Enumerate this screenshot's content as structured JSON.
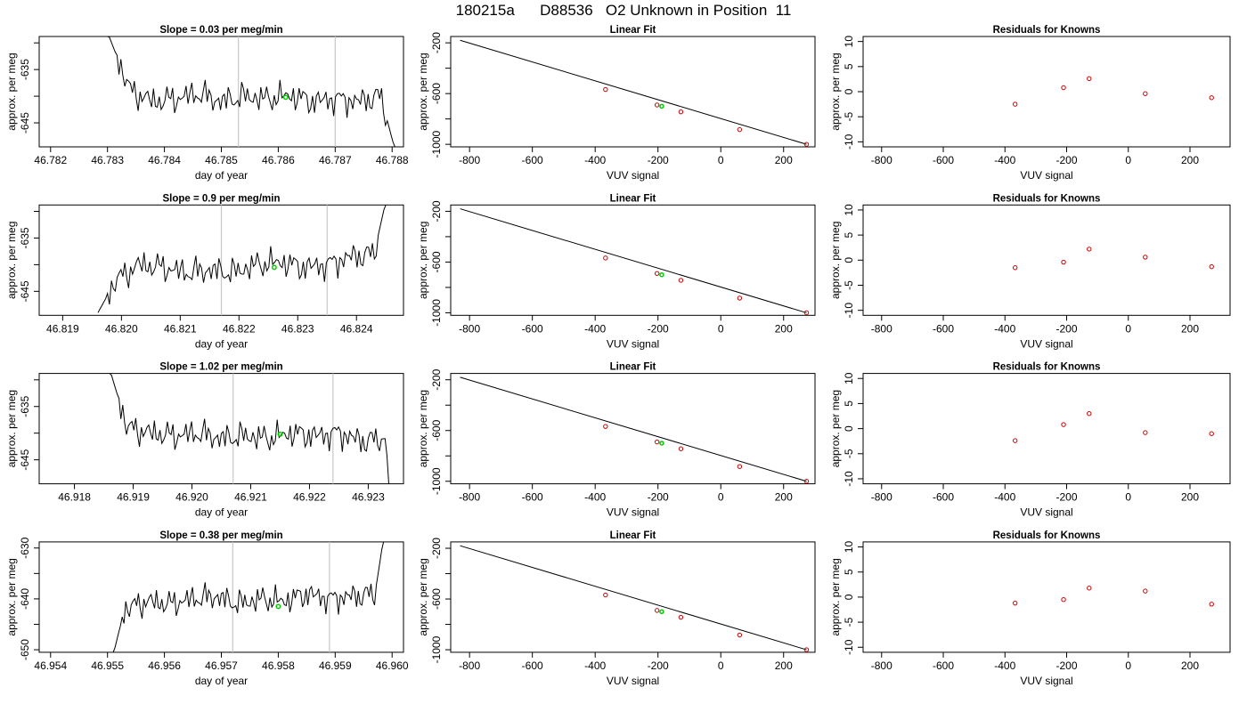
{
  "title": "180215a      D88536   O2 Unknown in Position  11",
  "colors": {
    "trace": "#000000",
    "highlight": "#00cc00",
    "known_points": "#cc0000",
    "cycle_markers": "#c8c8c8",
    "fit_line": "#000000"
  },
  "chart_data": [
    {
      "type": "line",
      "row": 1,
      "title": "Slope =  0.03  per meg/min",
      "xlabel": "day of year",
      "ylabel": "approx. per meg",
      "xlim": [
        46.7818,
        46.7882
      ],
      "ylim": [
        -649.5,
        -628.8
      ],
      "xticks": [
        "46.782",
        "46.783",
        "46.784",
        "46.785",
        "46.786",
        "46.787",
        "46.788"
      ],
      "yticks": [
        "-635",
        "-645"
      ],
      "markers_x": [
        46.7853,
        46.787
      ],
      "trace_x": [
        46.783,
        46.7834,
        46.7838,
        46.7842,
        46.7846,
        46.785,
        46.7854,
        46.7858,
        46.7862,
        46.7866,
        46.787,
        46.7874,
        46.7878,
        46.78805
      ],
      "trace_y": [
        -628,
        -639,
        -641,
        -640.5,
        -639.5,
        -641,
        -640,
        -640.5,
        -639.8,
        -641,
        -640.5,
        -641,
        -640,
        -650
      ],
      "highlight": {
        "x": 46.78613,
        "y": -640.2
      }
    },
    {
      "type": "scatter",
      "row": 1,
      "title": "Linear Fit",
      "xlabel": "VUV signal",
      "ylabel": "approx. per meg",
      "xlim": [
        -860,
        300
      ],
      "ylim": [
        -1020,
        -150
      ],
      "xticks": [
        "-800",
        "-600",
        "-400",
        "-200",
        "0",
        "200"
      ],
      "yticks": [
        "-200",
        "-600",
        "-1000"
      ],
      "line": [
        [
          -830,
          -180
        ],
        [
          273,
          -1000
        ]
      ],
      "points_x": [
        -367,
        -203,
        -127,
        60,
        273
      ],
      "points_y": [
        -568,
        -690,
        -744,
        -884,
        -1000
      ],
      "highlight": {
        "x": -188,
        "y": -700
      }
    },
    {
      "type": "scatter",
      "row": 1,
      "title": "Residuals for Knowns",
      "xlabel": "VUV signal",
      "ylabel": "approx. per meg",
      "xlim": [
        -860,
        330
      ],
      "ylim": [
        -11,
        11
      ],
      "xticks": [
        "-800",
        "-600",
        "-400",
        "-200",
        "0",
        "200"
      ],
      "yticks": [
        "10",
        "5",
        "0",
        "-5",
        "-10"
      ],
      "points_x": [
        -367,
        -210,
        -127,
        55,
        270
      ],
      "points_y": [
        -2.5,
        0.8,
        2.6,
        -0.4,
        -1.2
      ]
    },
    {
      "type": "line",
      "row": 2,
      "title": "Slope =  0.9  per meg/min",
      "xlabel": "day of year",
      "ylabel": "approx. per meg",
      "xlim": [
        46.8186,
        46.8248
      ],
      "ylim": [
        -649.5,
        -628.8
      ],
      "xticks": [
        "46.819",
        "46.820",
        "46.821",
        "46.822",
        "46.823",
        "46.824"
      ],
      "yticks": [
        "-635",
        "-645"
      ],
      "markers_x": [
        46.8217,
        46.8235
      ],
      "trace_x": [
        46.8196,
        46.8199,
        46.8203,
        46.8207,
        46.8211,
        46.8215,
        46.8219,
        46.8223,
        46.8227,
        46.8231,
        46.8235,
        46.8239,
        46.8243,
        46.8245
      ],
      "trace_y": [
        -649,
        -643,
        -640,
        -640.5,
        -641.5,
        -641,
        -641.5,
        -640,
        -639.5,
        -640.5,
        -640,
        -638.5,
        -638,
        -628
      ],
      "highlight": {
        "x": 46.8226,
        "y": -640.5
      }
    },
    {
      "type": "scatter",
      "row": 2,
      "title": "Linear Fit",
      "xlabel": "VUV signal",
      "ylabel": "approx. per meg",
      "xlim": [
        -860,
        300
      ],
      "ylim": [
        -1020,
        -150
      ],
      "xticks": [
        "-800",
        "-600",
        "-400",
        "-200",
        "0",
        "200"
      ],
      "yticks": [
        "-200",
        "-600",
        "-1000"
      ],
      "line": [
        [
          -830,
          -180
        ],
        [
          273,
          -1000
        ]
      ],
      "points_x": [
        -367,
        -203,
        -127,
        60,
        273
      ],
      "points_y": [
        -568,
        -690,
        -744,
        -884,
        -1000
      ],
      "highlight": {
        "x": -188,
        "y": -700
      }
    },
    {
      "type": "scatter",
      "row": 2,
      "title": "Residuals for Knowns",
      "xlabel": "VUV signal",
      "ylabel": "approx. per meg",
      "xlim": [
        -860,
        330
      ],
      "ylim": [
        -11,
        11
      ],
      "xticks": [
        "-800",
        "-600",
        "-400",
        "-200",
        "0",
        "200"
      ],
      "yticks": [
        "10",
        "5",
        "0",
        "-5",
        "-10"
      ],
      "points_x": [
        -367,
        -210,
        -127,
        55,
        270
      ],
      "points_y": [
        -1.5,
        -0.4,
        2.2,
        0.6,
        -1.3
      ]
    },
    {
      "type": "line",
      "row": 3,
      "title": "Slope =  1.02  per meg/min",
      "xlabel": "day of year",
      "ylabel": "approx. per meg",
      "xlim": [
        46.9174,
        46.9236
      ],
      "ylim": [
        -649.5,
        -628.8
      ],
      "xticks": [
        "46.918",
        "46.919",
        "46.920",
        "46.921",
        "46.922",
        "46.923"
      ],
      "yticks": [
        "-635",
        "-645"
      ],
      "markers_x": [
        46.9207,
        46.9224
      ],
      "trace_x": [
        46.9186,
        46.9189,
        46.9193,
        46.9197,
        46.9201,
        46.9205,
        46.9209,
        46.9213,
        46.9217,
        46.9221,
        46.9225,
        46.9229,
        46.9233,
        46.92335
      ],
      "trace_y": [
        -628,
        -639,
        -640,
        -640.5,
        -640,
        -641,
        -640.5,
        -641,
        -640,
        -640.5,
        -640,
        -641.5,
        -641,
        -649.5
      ],
      "highlight": {
        "x": 46.9215,
        "y": -640.2
      }
    },
    {
      "type": "scatter",
      "row": 3,
      "title": "Linear Fit",
      "xlabel": "VUV signal",
      "ylabel": "approx. per meg",
      "xlim": [
        -860,
        300
      ],
      "ylim": [
        -1020,
        -150
      ],
      "xticks": [
        "-800",
        "-600",
        "-400",
        "-200",
        "0",
        "200"
      ],
      "yticks": [
        "-200",
        "-600",
        "-1000"
      ],
      "line": [
        [
          -830,
          -180
        ],
        [
          273,
          -1000
        ]
      ],
      "points_x": [
        -367,
        -203,
        -127,
        60,
        273
      ],
      "points_y": [
        -568,
        -690,
        -744,
        -884,
        -1000
      ],
      "highlight": {
        "x": -188,
        "y": -700
      }
    },
    {
      "type": "scatter",
      "row": 3,
      "title": "Residuals for Knowns",
      "xlabel": "VUV signal",
      "ylabel": "approx. per meg",
      "xlim": [
        -860,
        330
      ],
      "ylim": [
        -11,
        11
      ],
      "xticks": [
        "-800",
        "-600",
        "-400",
        "-200",
        "0",
        "200"
      ],
      "yticks": [
        "10",
        "5",
        "0",
        "-5",
        "-10"
      ],
      "points_x": [
        -367,
        -210,
        -127,
        55,
        270
      ],
      "points_y": [
        -2.4,
        0.8,
        3.0,
        -0.8,
        -1.0
      ]
    },
    {
      "type": "line",
      "row": 4,
      "title": "Slope =  0.38  per meg/min",
      "xlabel": "day of year",
      "ylabel": "approx. per meg",
      "xlim": [
        46.9538,
        46.9602
      ],
      "ylim": [
        -650.5,
        -628.8
      ],
      "xticks": [
        "46.954",
        "46.955",
        "46.956",
        "46.957",
        "46.958",
        "46.959",
        "46.960"
      ],
      "yticks": [
        "-630",
        "-640",
        "-650"
      ],
      "markers_x": [
        46.9572,
        46.9589
      ],
      "trace_x": [
        46.9551,
        46.9553,
        46.9557,
        46.9561,
        46.9565,
        46.9569,
        46.9573,
        46.9577,
        46.9581,
        46.9585,
        46.9589,
        46.9593,
        46.9597,
        46.95985
      ],
      "trace_y": [
        -651,
        -642,
        -640.5,
        -641,
        -640,
        -639.5,
        -641,
        -640,
        -640.5,
        -639,
        -640,
        -639.5,
        -639,
        -628
      ],
      "highlight": {
        "x": 46.958,
        "y": -641.5
      }
    },
    {
      "type": "scatter",
      "row": 4,
      "title": "Linear Fit",
      "xlabel": "VUV signal",
      "ylabel": "approx. per meg",
      "xlim": [
        -860,
        300
      ],
      "ylim": [
        -1020,
        -150
      ],
      "xticks": [
        "-800",
        "-600",
        "-400",
        "-200",
        "0",
        "200"
      ],
      "yticks": [
        "-200",
        "-600",
        "-1000"
      ],
      "line": [
        [
          -830,
          -180
        ],
        [
          273,
          -1000
        ]
      ],
      "points_x": [
        -367,
        -203,
        -127,
        60,
        273
      ],
      "points_y": [
        -568,
        -690,
        -744,
        -884,
        -1000
      ],
      "highlight": {
        "x": -188,
        "y": -700
      }
    },
    {
      "type": "scatter",
      "row": 4,
      "title": "Residuals for Knowns",
      "xlabel": "VUV signal",
      "ylabel": "approx. per meg",
      "xlim": [
        -860,
        330
      ],
      "ylim": [
        -11,
        11
      ],
      "xticks": [
        "-800",
        "-600",
        "-400",
        "-200",
        "0",
        "200"
      ],
      "yticks": [
        "10",
        "5",
        "0",
        "-5",
        "-10"
      ],
      "points_x": [
        -367,
        -210,
        -127,
        55,
        270
      ],
      "points_y": [
        -1.2,
        -0.5,
        1.8,
        1.2,
        -1.4
      ]
    }
  ]
}
